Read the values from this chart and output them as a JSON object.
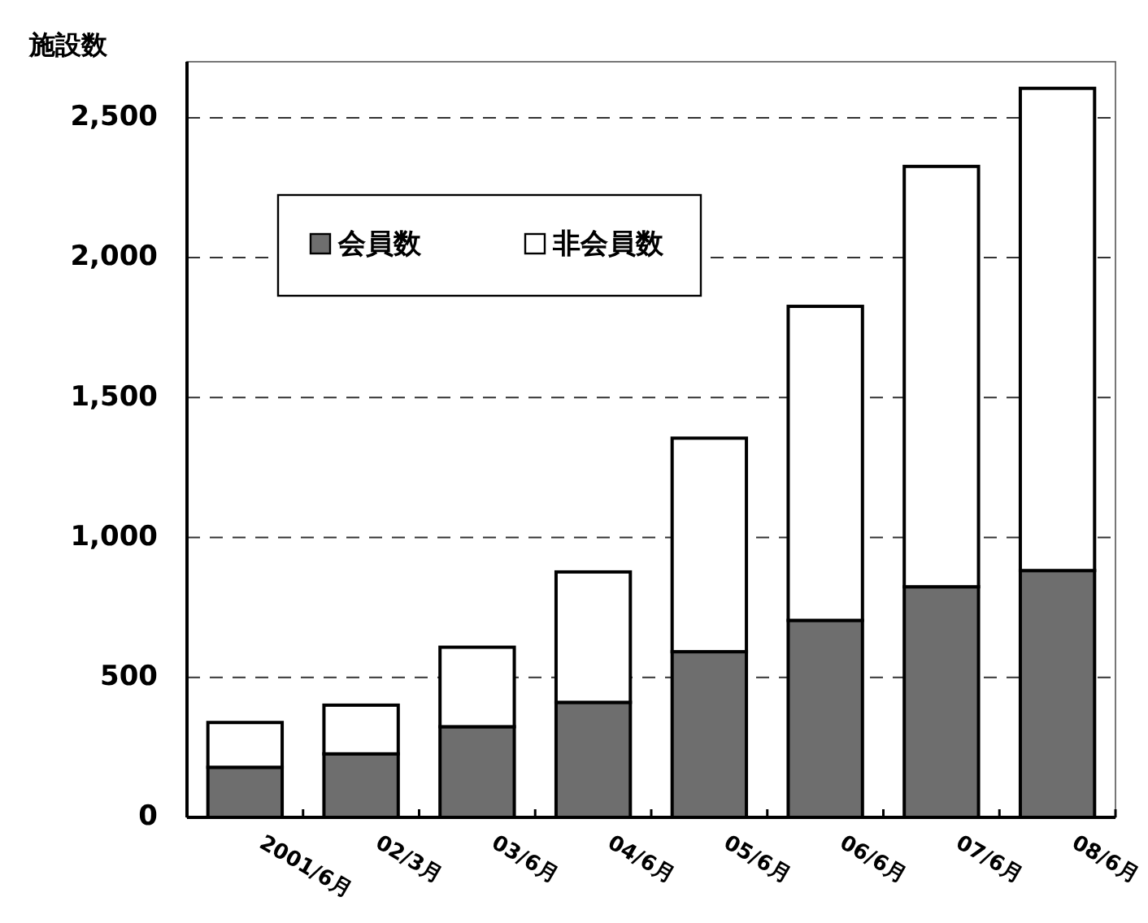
{
  "chart_data": {
    "type": "bar",
    "ylabel": "施設数",
    "categories": [
      "2001/6月",
      "02/3月",
      "03/6月",
      "04/6月",
      "05/6月",
      "06/6月",
      "07/6月",
      "08/6月"
    ],
    "series": [
      {
        "name": "会員数",
        "color": "#6e6e6e",
        "values": [
          179,
          227,
          324,
          411,
          592,
          704,
          824,
          882
        ]
      },
      {
        "name": "非会員数",
        "color": "#ffffff",
        "values": [
          160,
          174,
          284,
          466,
          763,
          1122,
          1502,
          1723
        ]
      }
    ],
    "stacked": true,
    "ylim": [
      0,
      2700
    ],
    "yticks": [
      0,
      500,
      {
        "value": 1000,
        "label": "1,000"
      },
      {
        "value": 1500,
        "label": "1,500"
      },
      {
        "value": 2000,
        "label": "2,000"
      },
      {
        "value": 2500,
        "label": "2,500"
      }
    ],
    "grid": "y",
    "legend": "top left"
  }
}
